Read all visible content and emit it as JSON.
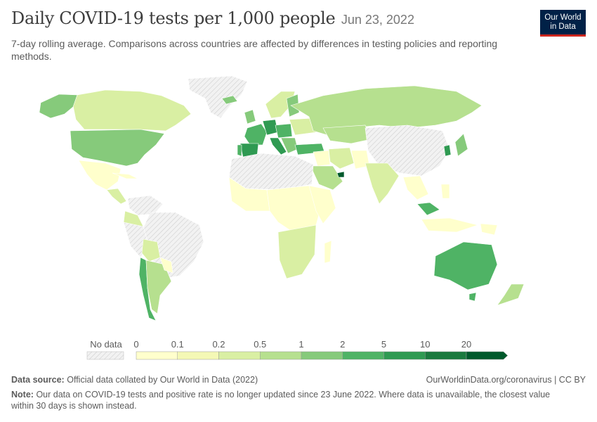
{
  "header": {
    "title": "Daily COVID-19 tests per 1,000 people",
    "date": "Jun 23, 2022",
    "subtitle": "7-day rolling average. Comparisons across countries are affected by differences in testing policies and reporting methods."
  },
  "logo": {
    "line1": "Our World",
    "line2": "in Data"
  },
  "legend": {
    "no_data_label": "No data",
    "ticks": [
      "0",
      "0.1",
      "0.2",
      "0.5",
      "1",
      "2",
      "5",
      "10",
      "20"
    ],
    "colors": [
      "#ffffcc",
      "#f4f8b5",
      "#d9efa3",
      "#b6e08f",
      "#86ca7b",
      "#4fb365",
      "#2f9a52",
      "#1a7a3e",
      "#00592b"
    ]
  },
  "footer": {
    "source_label": "Data source:",
    "source_text": "Official data collated by Our World in Data (2022)",
    "link": "OurWorldinData.org/coronavirus | CC BY",
    "note_label": "Note:",
    "note_text": "Our data on COVID-19 tests and positive rate is no longer updated since 23 June 2022. Where data is unavailable, the closest value within 30 days is shown instead."
  },
  "map_colors": {
    "nodata": "url(#hatch)",
    "c0": "#ffffcc",
    "c1": "#f4f8b5",
    "c2": "#d9efa3",
    "c3": "#b6e08f",
    "c4": "#86ca7b",
    "c5": "#4fb365",
    "c6": "#2f9a52",
    "c7": "#1a7a3e",
    "c8": "#00592b"
  }
}
